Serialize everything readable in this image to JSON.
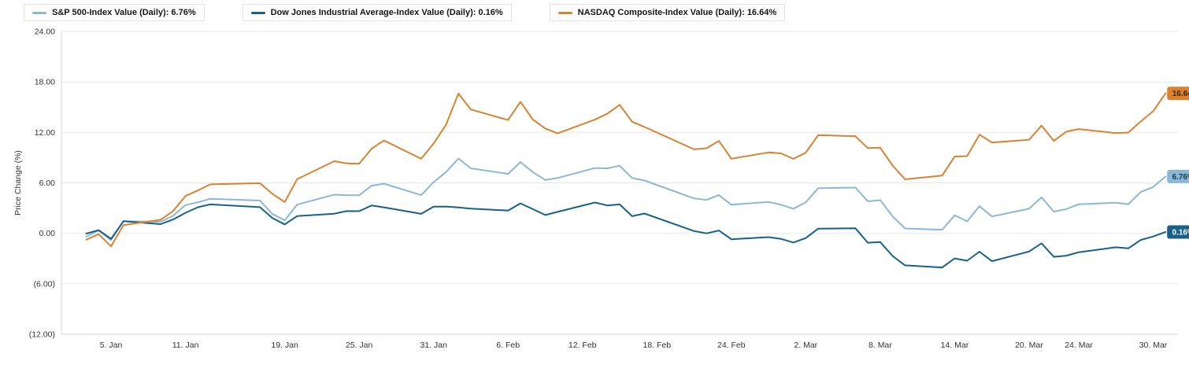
{
  "legend": {
    "items": [
      {
        "id": "sp500",
        "label": "S&P 500-Index Value (Daily): 6.76%",
        "color": "#8ab8d6"
      },
      {
        "id": "dow",
        "label": "Dow Jones Industrial Average-Index Value (Daily): 0.16%",
        "color": "#17618b"
      },
      {
        "id": "nasdaq",
        "label": "NASDAQ Composite-Index Value (Daily): 16.64%",
        "color": "#d9822f"
      }
    ]
  },
  "chart_data": {
    "type": "line",
    "title": "",
    "xlabel": "",
    "ylabel": "Price Change (%)",
    "ylim": [
      -12,
      24
    ],
    "yticks": [
      24,
      18,
      12,
      6,
      0,
      -6,
      -12
    ],
    "ytick_labels": [
      "24.00",
      "18.00",
      "12.00",
      "6.00",
      "0.00",
      "(6.00)",
      "(12.00)"
    ],
    "grid": "horizontal",
    "legend_position": "top-left",
    "x_range_days": [
      1,
      91
    ],
    "xticks": [
      {
        "day": 5,
        "label": "5. Jan"
      },
      {
        "day": 11,
        "label": "11. Jan"
      },
      {
        "day": 19,
        "label": "19. Jan"
      },
      {
        "day": 25,
        "label": "25. Jan"
      },
      {
        "day": 31,
        "label": "31. Jan"
      },
      {
        "day": 37,
        "label": "6. Feb"
      },
      {
        "day": 43,
        "label": "12. Feb"
      },
      {
        "day": 49,
        "label": "18. Feb"
      },
      {
        "day": 55,
        "label": "24. Feb"
      },
      {
        "day": 61,
        "label": "2. Mar"
      },
      {
        "day": 67,
        "label": "8. Mar"
      },
      {
        "day": 73,
        "label": "14. Mar"
      },
      {
        "day": 79,
        "label": "20. Mar"
      },
      {
        "day": 83,
        "label": "24. Mar"
      },
      {
        "day": 89,
        "label": "30. Mar"
      }
    ],
    "days": [
      3,
      4,
      5,
      6,
      9,
      10,
      11,
      12,
      13,
      17,
      18,
      19,
      20,
      23,
      24,
      25,
      26,
      27,
      30,
      31,
      32,
      33,
      34,
      37,
      38,
      39,
      40,
      41,
      44,
      45,
      46,
      47,
      48,
      52,
      53,
      54,
      55,
      58,
      59,
      60,
      61,
      62,
      65,
      66,
      67,
      68,
      69,
      72,
      73,
      74,
      75,
      76,
      79,
      80,
      81,
      82,
      83,
      86,
      87,
      88,
      89,
      90
    ],
    "series": [
      {
        "id": "sp500",
        "name": "S&P 500-Index Value (Daily)",
        "color": "#8ab8d6",
        "end_label": "6.76%",
        "end_label_text_color": "#17384d",
        "values": [
          -0.4,
          0.35,
          -0.81,
          1.45,
          1.37,
          2.08,
          3.35,
          3.69,
          4.1,
          3.9,
          2.31,
          1.54,
          3.42,
          4.6,
          4.53,
          4.52,
          5.66,
          5.91,
          4.54,
          6.08,
          7.28,
          8.89,
          7.73,
          7.07,
          8.47,
          7.28,
          6.35,
          6.58,
          7.76,
          7.73,
          8.03,
          6.56,
          6.28,
          4.15,
          3.98,
          4.54,
          3.4,
          3.73,
          3.4,
          2.92,
          3.69,
          5.37,
          5.44,
          3.8,
          3.94,
          2.01,
          0.58,
          0.43,
          2.14,
          1.43,
          3.22,
          2.01,
          2.92,
          4.28,
          2.58,
          2.89,
          3.46,
          3.63,
          3.46,
          4.91,
          5.5,
          6.76
        ]
      },
      {
        "id": "dow",
        "name": "Dow Jones Industrial Average-Index Value (Daily)",
        "color": "#17618b",
        "end_label": "0.16%",
        "end_label_text_color": "#ffffff",
        "values": [
          -0.03,
          0.37,
          -0.66,
          1.44,
          1.09,
          1.64,
          2.44,
          3.1,
          3.44,
          3.11,
          1.83,
          1.06,
          2.05,
          2.33,
          2.64,
          2.63,
          3.31,
          3.09,
          2.32,
          3.18,
          3.19,
          3.08,
          2.93,
          2.71,
          3.56,
          2.88,
          2.18,
          2.55,
          3.66,
          3.32,
          3.44,
          2.04,
          2.35,
          0.27,
          0.0,
          0.33,
          -0.7,
          -0.45,
          -0.66,
          -1.1,
          -0.56,
          0.56,
          0.6,
          -1.12,
          -1.04,
          -2.7,
          -3.81,
          -4.06,
          -2.99,
          -3.26,
          -2.18,
          -3.31,
          -2.16,
          -1.19,
          -2.8,
          -2.66,
          -2.25,
          -1.66,
          -1.79,
          -0.79,
          -0.38,
          0.16
        ]
      },
      {
        "id": "nasdaq",
        "name": "NASDAQ Composite-Index Value (Daily)",
        "color": "#d9822f",
        "end_label": "16.64%",
        "end_label_text_color": "#3d2305",
        "values": [
          -0.76,
          -0.1,
          -1.56,
          0.98,
          1.61,
          2.64,
          4.44,
          5.09,
          5.82,
          5.96,
          4.7,
          3.72,
          6.44,
          8.58,
          8.31,
          8.26,
          10.06,
          11.04,
          8.86,
          10.68,
          12.9,
          16.62,
          14.72,
          13.47,
          15.62,
          13.54,
          12.46,
          11.88,
          13.52,
          14.22,
          15.28,
          13.27,
          12.65,
          9.98,
          10.11,
          10.98,
          8.87,
          9.62,
          9.51,
          8.85,
          9.6,
          11.68,
          11.54,
          10.13,
          10.18,
          8.06,
          6.42,
          6.87,
          9.12,
          9.18,
          11.73,
          10.8,
          11.12,
          12.81,
          10.99,
          12.09,
          12.4,
          11.92,
          11.98,
          13.3,
          14.52,
          16.64
        ]
      }
    ]
  }
}
